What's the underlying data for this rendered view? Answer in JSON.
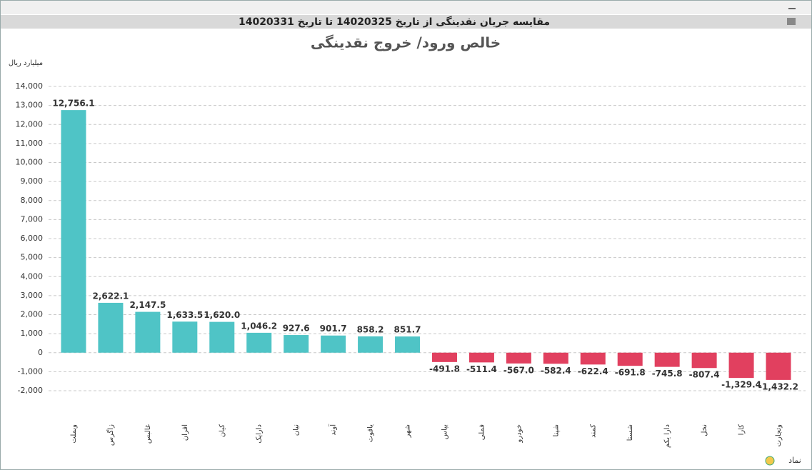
{
  "header": {
    "title": "مقایسه جریان نقدینگی از تاریخ 14020325 تا تاریخ 14020331"
  },
  "chart_data": {
    "type": "bar",
    "title": "خالص ورود/ خروج نقدینگی",
    "y_label": "میلیارد ریال",
    "x_label": "نماد",
    "categories": [
      "وبملت",
      "زاگرس",
      "غالبس",
      "افران",
      "کیان",
      "دارایک",
      "نیان",
      "آوند",
      "یاقوت",
      "شهر",
      "بپاس",
      "فملی",
      "خودرو",
      "شپنا",
      "کمند",
      "شستا",
      "دارا یکم",
      "نخل",
      "کارا",
      "وتجارت"
    ],
    "values": [
      12756.1,
      2622.1,
      2147.5,
      1633.5,
      1620.0,
      1046.2,
      927.6,
      901.7,
      858.2,
      851.7,
      -491.8,
      -511.4,
      -567.0,
      -582.4,
      -622.4,
      -691.8,
      -745.8,
      -807.4,
      -1329.4,
      -1432.2
    ],
    "value_labels": [
      "12,756.1",
      "2,622.1",
      "2,147.5",
      "1,633.5",
      "1,620.0",
      "1,046.2",
      "927.6",
      "901.7",
      "858.2",
      "851.7",
      "-491.8",
      "-511.4",
      "-567.0",
      "-582.4",
      "-622.4",
      "-691.8",
      "-745.8",
      "-807.4",
      "-1,329.4",
      "-1,432.2"
    ],
    "colors": {
      "positive": "#4fc4c6",
      "negative": "#e1405f"
    },
    "ylim": [
      -2000,
      14000
    ],
    "yticks": [
      {
        "value": -2000,
        "label": "-2,000"
      },
      {
        "value": -1000,
        "label": "-1,000"
      },
      0,
      {
        "value": 1000,
        "label": "1,000"
      },
      {
        "value": 2000,
        "label": "2,000"
      },
      {
        "value": 3000,
        "label": "3,000"
      },
      {
        "value": 4000,
        "label": "4,000"
      },
      {
        "value": 5000,
        "label": "5,000"
      },
      {
        "value": 6000,
        "label": "6,000"
      },
      {
        "value": 7000,
        "label": "7,000"
      },
      {
        "value": 8000,
        "label": "8,000"
      },
      {
        "value": 9000,
        "label": "9,000"
      },
      {
        "value": 10000,
        "label": "10,000"
      },
      {
        "value": 11000,
        "label": "11,000"
      },
      {
        "value": 12000,
        "label": "12,000"
      },
      {
        "value": 13000,
        "label": "13,000"
      },
      {
        "value": 14000,
        "label": "14,000"
      }
    ],
    "grid": true
  }
}
